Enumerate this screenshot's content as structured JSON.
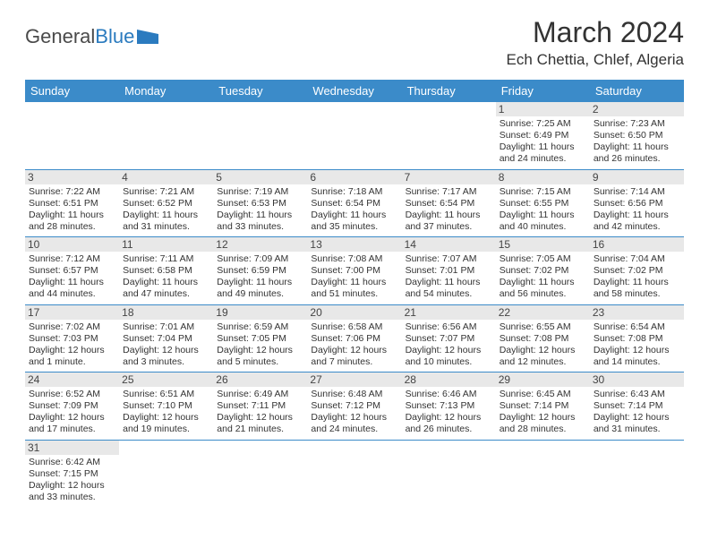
{
  "logo": {
    "text_general": "General",
    "text_blue": "Blue"
  },
  "title": "March 2024",
  "location": "Ech Chettia, Chlef, Algeria",
  "colors": {
    "header_bg": "#3b8bc9",
    "header_text": "#ffffff",
    "daynum_bg": "#e8e8e8",
    "text": "#333333",
    "rule": "#3b8bc9"
  },
  "day_headers": [
    "Sunday",
    "Monday",
    "Tuesday",
    "Wednesday",
    "Thursday",
    "Friday",
    "Saturday"
  ],
  "weeks": [
    [
      null,
      null,
      null,
      null,
      null,
      {
        "n": "1",
        "sr": "Sunrise: 7:25 AM",
        "ss": "Sunset: 6:49 PM",
        "d1": "Daylight: 11 hours",
        "d2": "and 24 minutes."
      },
      {
        "n": "2",
        "sr": "Sunrise: 7:23 AM",
        "ss": "Sunset: 6:50 PM",
        "d1": "Daylight: 11 hours",
        "d2": "and 26 minutes."
      }
    ],
    [
      {
        "n": "3",
        "sr": "Sunrise: 7:22 AM",
        "ss": "Sunset: 6:51 PM",
        "d1": "Daylight: 11 hours",
        "d2": "and 28 minutes."
      },
      {
        "n": "4",
        "sr": "Sunrise: 7:21 AM",
        "ss": "Sunset: 6:52 PM",
        "d1": "Daylight: 11 hours",
        "d2": "and 31 minutes."
      },
      {
        "n": "5",
        "sr": "Sunrise: 7:19 AM",
        "ss": "Sunset: 6:53 PM",
        "d1": "Daylight: 11 hours",
        "d2": "and 33 minutes."
      },
      {
        "n": "6",
        "sr": "Sunrise: 7:18 AM",
        "ss": "Sunset: 6:54 PM",
        "d1": "Daylight: 11 hours",
        "d2": "and 35 minutes."
      },
      {
        "n": "7",
        "sr": "Sunrise: 7:17 AM",
        "ss": "Sunset: 6:54 PM",
        "d1": "Daylight: 11 hours",
        "d2": "and 37 minutes."
      },
      {
        "n": "8",
        "sr": "Sunrise: 7:15 AM",
        "ss": "Sunset: 6:55 PM",
        "d1": "Daylight: 11 hours",
        "d2": "and 40 minutes."
      },
      {
        "n": "9",
        "sr": "Sunrise: 7:14 AM",
        "ss": "Sunset: 6:56 PM",
        "d1": "Daylight: 11 hours",
        "d2": "and 42 minutes."
      }
    ],
    [
      {
        "n": "10",
        "sr": "Sunrise: 7:12 AM",
        "ss": "Sunset: 6:57 PM",
        "d1": "Daylight: 11 hours",
        "d2": "and 44 minutes."
      },
      {
        "n": "11",
        "sr": "Sunrise: 7:11 AM",
        "ss": "Sunset: 6:58 PM",
        "d1": "Daylight: 11 hours",
        "d2": "and 47 minutes."
      },
      {
        "n": "12",
        "sr": "Sunrise: 7:09 AM",
        "ss": "Sunset: 6:59 PM",
        "d1": "Daylight: 11 hours",
        "d2": "and 49 minutes."
      },
      {
        "n": "13",
        "sr": "Sunrise: 7:08 AM",
        "ss": "Sunset: 7:00 PM",
        "d1": "Daylight: 11 hours",
        "d2": "and 51 minutes."
      },
      {
        "n": "14",
        "sr": "Sunrise: 7:07 AM",
        "ss": "Sunset: 7:01 PM",
        "d1": "Daylight: 11 hours",
        "d2": "and 54 minutes."
      },
      {
        "n": "15",
        "sr": "Sunrise: 7:05 AM",
        "ss": "Sunset: 7:02 PM",
        "d1": "Daylight: 11 hours",
        "d2": "and 56 minutes."
      },
      {
        "n": "16",
        "sr": "Sunrise: 7:04 AM",
        "ss": "Sunset: 7:02 PM",
        "d1": "Daylight: 11 hours",
        "d2": "and 58 minutes."
      }
    ],
    [
      {
        "n": "17",
        "sr": "Sunrise: 7:02 AM",
        "ss": "Sunset: 7:03 PM",
        "d1": "Daylight: 12 hours",
        "d2": "and 1 minute."
      },
      {
        "n": "18",
        "sr": "Sunrise: 7:01 AM",
        "ss": "Sunset: 7:04 PM",
        "d1": "Daylight: 12 hours",
        "d2": "and 3 minutes."
      },
      {
        "n": "19",
        "sr": "Sunrise: 6:59 AM",
        "ss": "Sunset: 7:05 PM",
        "d1": "Daylight: 12 hours",
        "d2": "and 5 minutes."
      },
      {
        "n": "20",
        "sr": "Sunrise: 6:58 AM",
        "ss": "Sunset: 7:06 PM",
        "d1": "Daylight: 12 hours",
        "d2": "and 7 minutes."
      },
      {
        "n": "21",
        "sr": "Sunrise: 6:56 AM",
        "ss": "Sunset: 7:07 PM",
        "d1": "Daylight: 12 hours",
        "d2": "and 10 minutes."
      },
      {
        "n": "22",
        "sr": "Sunrise: 6:55 AM",
        "ss": "Sunset: 7:08 PM",
        "d1": "Daylight: 12 hours",
        "d2": "and 12 minutes."
      },
      {
        "n": "23",
        "sr": "Sunrise: 6:54 AM",
        "ss": "Sunset: 7:08 PM",
        "d1": "Daylight: 12 hours",
        "d2": "and 14 minutes."
      }
    ],
    [
      {
        "n": "24",
        "sr": "Sunrise: 6:52 AM",
        "ss": "Sunset: 7:09 PM",
        "d1": "Daylight: 12 hours",
        "d2": "and 17 minutes."
      },
      {
        "n": "25",
        "sr": "Sunrise: 6:51 AM",
        "ss": "Sunset: 7:10 PM",
        "d1": "Daylight: 12 hours",
        "d2": "and 19 minutes."
      },
      {
        "n": "26",
        "sr": "Sunrise: 6:49 AM",
        "ss": "Sunset: 7:11 PM",
        "d1": "Daylight: 12 hours",
        "d2": "and 21 minutes."
      },
      {
        "n": "27",
        "sr": "Sunrise: 6:48 AM",
        "ss": "Sunset: 7:12 PM",
        "d1": "Daylight: 12 hours",
        "d2": "and 24 minutes."
      },
      {
        "n": "28",
        "sr": "Sunrise: 6:46 AM",
        "ss": "Sunset: 7:13 PM",
        "d1": "Daylight: 12 hours",
        "d2": "and 26 minutes."
      },
      {
        "n": "29",
        "sr": "Sunrise: 6:45 AM",
        "ss": "Sunset: 7:14 PM",
        "d1": "Daylight: 12 hours",
        "d2": "and 28 minutes."
      },
      {
        "n": "30",
        "sr": "Sunrise: 6:43 AM",
        "ss": "Sunset: 7:14 PM",
        "d1": "Daylight: 12 hours",
        "d2": "and 31 minutes."
      }
    ],
    [
      {
        "n": "31",
        "sr": "Sunrise: 6:42 AM",
        "ss": "Sunset: 7:15 PM",
        "d1": "Daylight: 12 hours",
        "d2": "and 33 minutes."
      },
      null,
      null,
      null,
      null,
      null,
      null
    ]
  ]
}
